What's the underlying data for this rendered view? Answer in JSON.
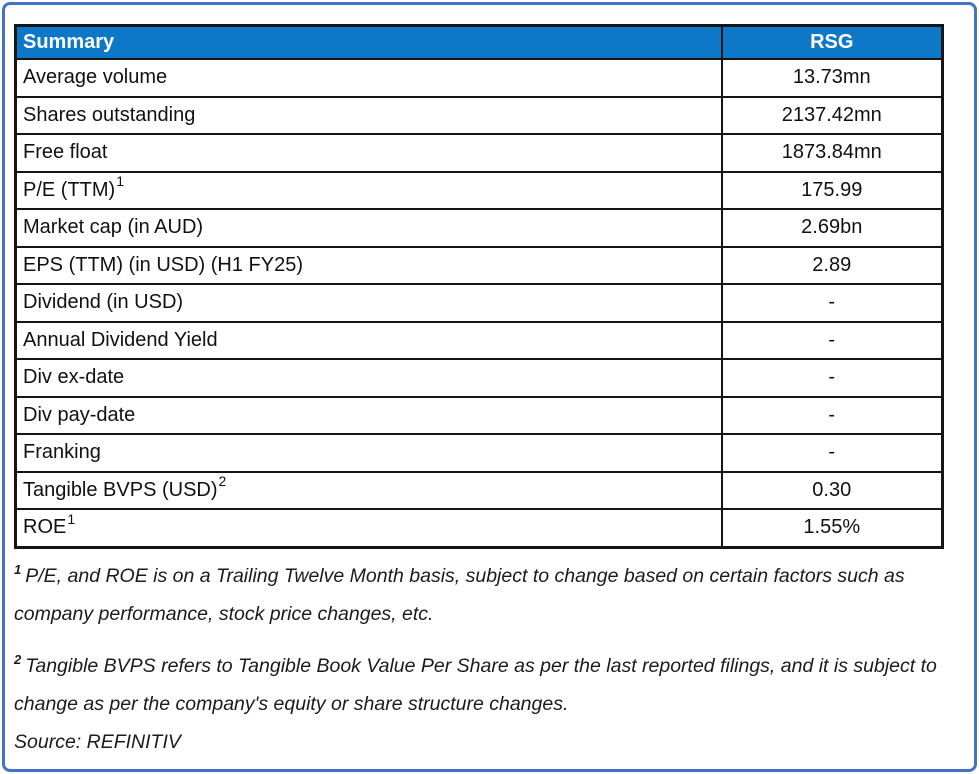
{
  "colors": {
    "frame_border": "#4472C4",
    "header_bg": "#0E78C8",
    "header_text": "#FFFFFF",
    "grid": "#151515"
  },
  "table": {
    "header": {
      "summary_label": "Summary",
      "ticker_label": "RSG"
    },
    "rows": [
      {
        "label": "Average volume",
        "sup": "",
        "value": "13.73mn"
      },
      {
        "label": "Shares outstanding",
        "sup": "",
        "value": "2137.42mn"
      },
      {
        "label": "Free float",
        "sup": "",
        "value": "1873.84mn"
      },
      {
        "label": "P/E (TTM)",
        "sup": "1",
        "value": "175.99"
      },
      {
        "label": "Market cap (in AUD)",
        "sup": "",
        "value": "2.69bn"
      },
      {
        "label": "EPS (TTM) (in USD) (H1 FY25)",
        "sup": "",
        "value": "2.89"
      },
      {
        "label": "Dividend (in USD)",
        "sup": "",
        "value": "-"
      },
      {
        "label": "Annual Dividend Yield",
        "sup": "",
        "value": "-"
      },
      {
        "label": "Div ex-date",
        "sup": "",
        "value": "-"
      },
      {
        "label": "Div pay-date",
        "sup": "",
        "value": "-"
      },
      {
        "label": "Franking",
        "sup": "",
        "value": "-"
      },
      {
        "label": "Tangible BVPS (USD)",
        "sup": "2",
        "value": "0.30"
      },
      {
        "label": "ROE",
        "sup": "1",
        "value": "1.55%"
      }
    ]
  },
  "footnotes": [
    {
      "sup": "1",
      "text": "P/E, and ROE is on a Trailing Twelve Month basis, subject to change based on certain factors such as company performance, stock price changes, etc."
    },
    {
      "sup": "2",
      "text": "Tangible BVPS refers to Tangible Book Value Per Share as per the last reported filings, and it is subject to change as per the company's equity or share structure changes."
    }
  ],
  "source": "Source: REFINITIV"
}
